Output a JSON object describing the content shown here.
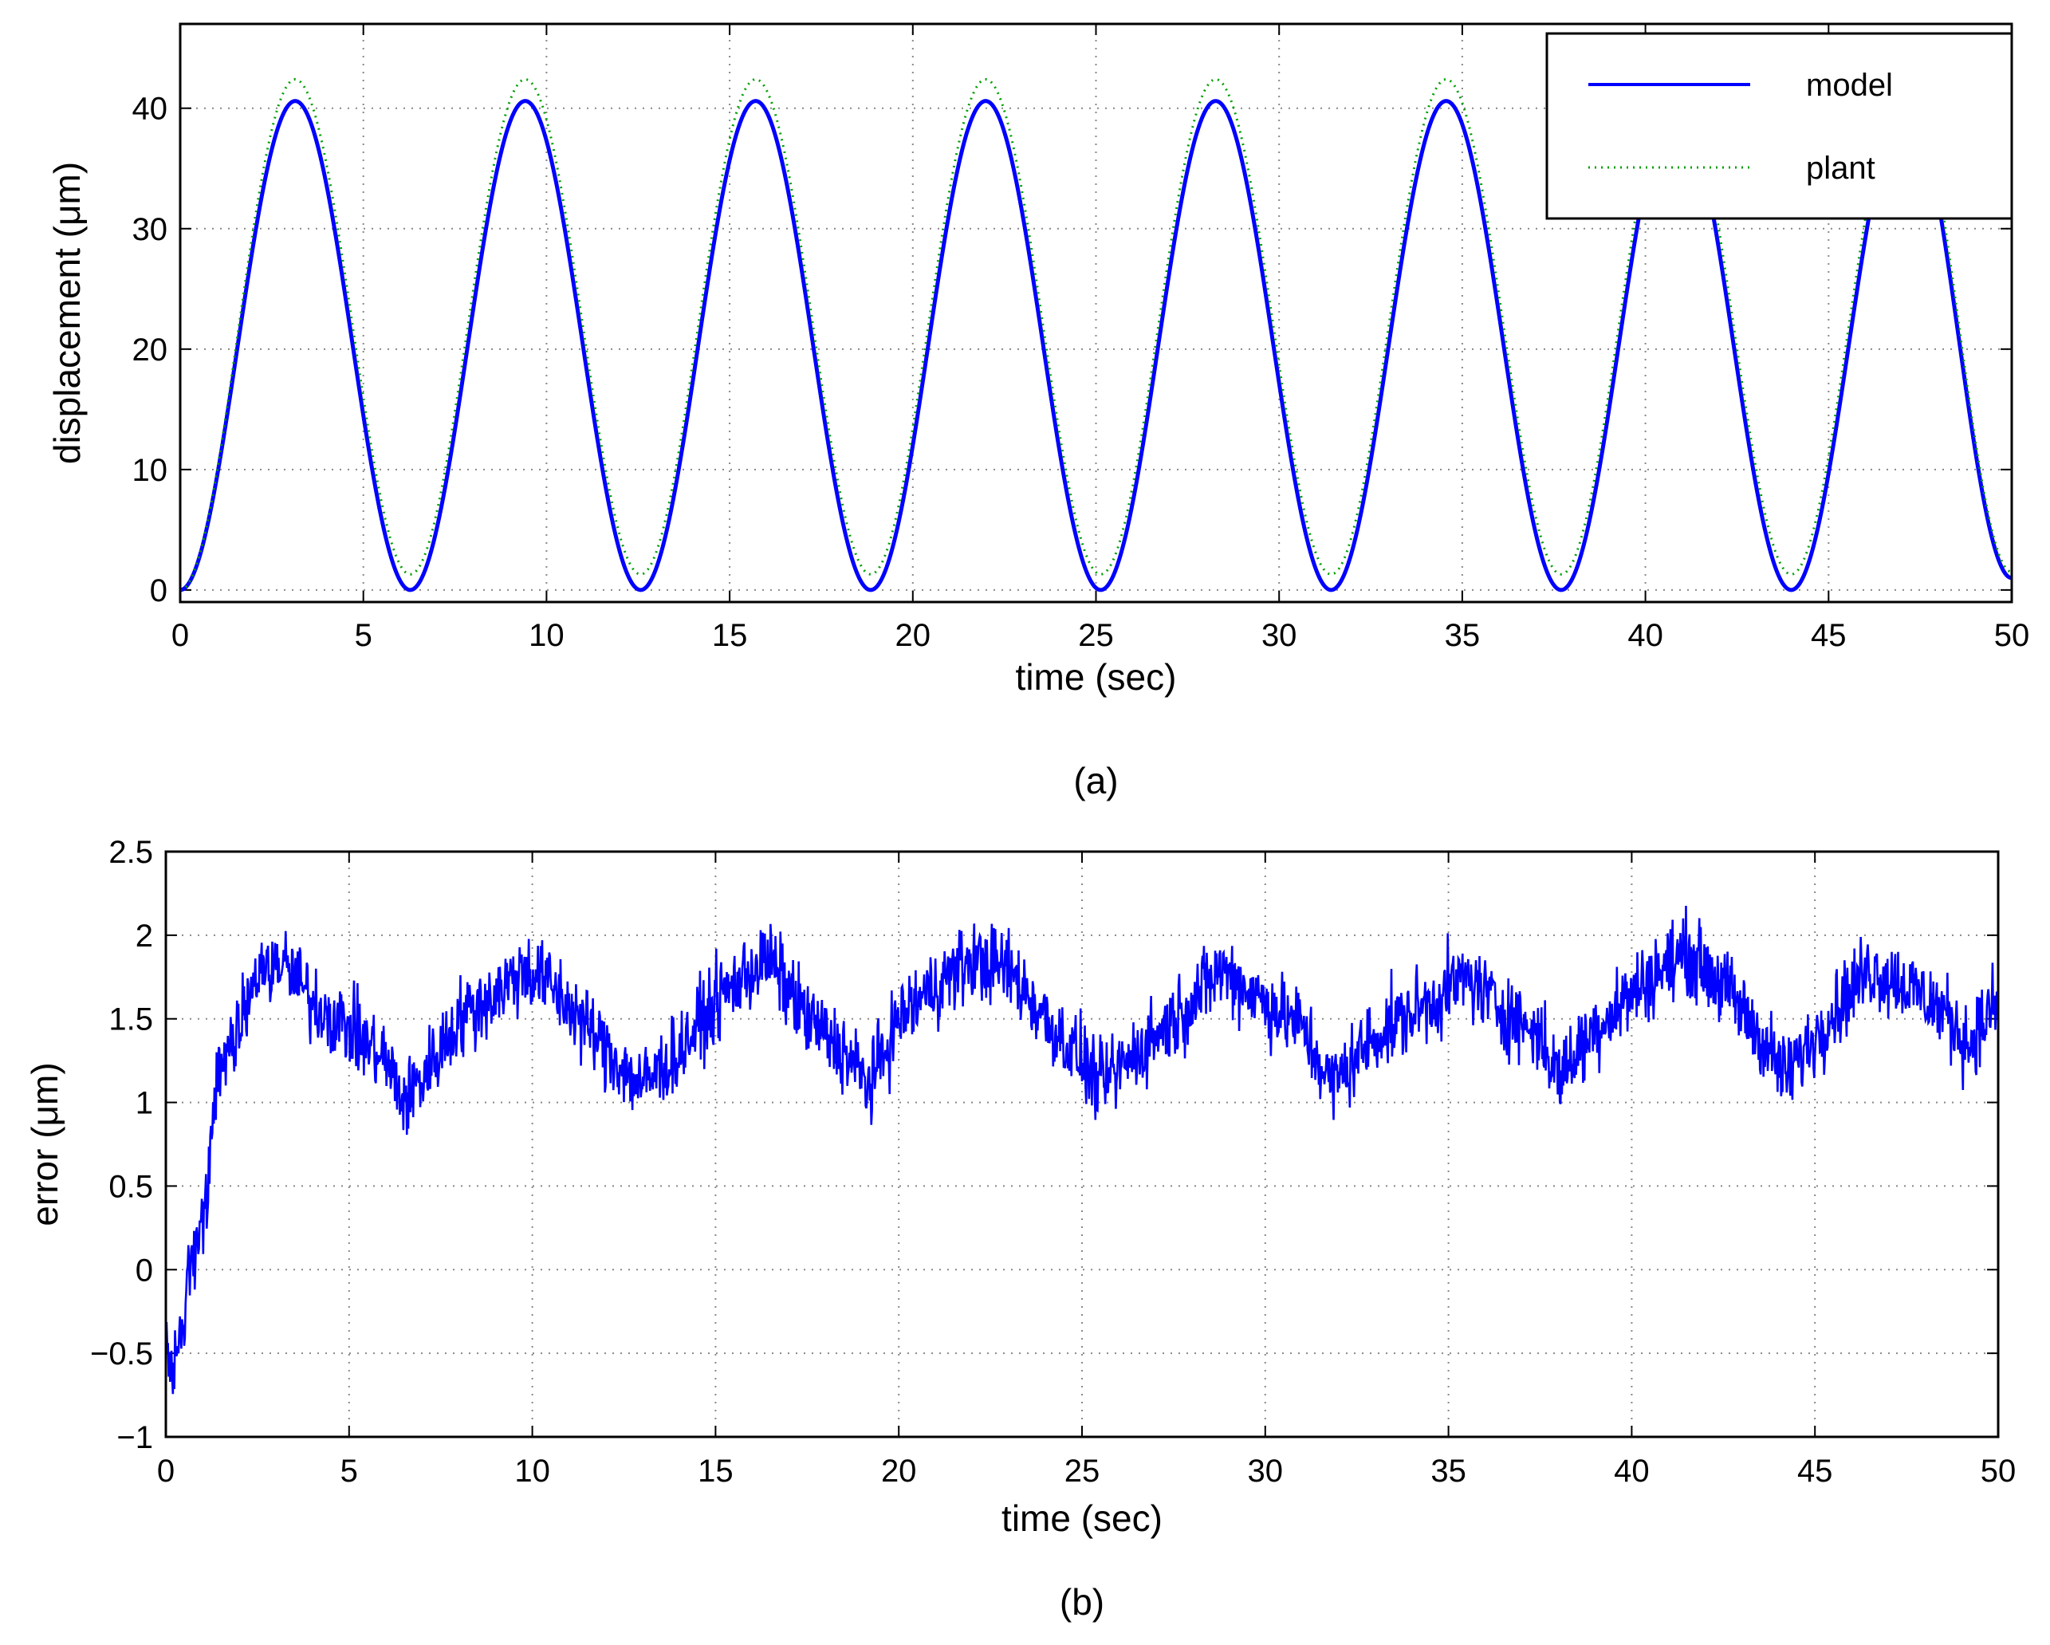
{
  "chart_data": [
    {
      "type": "line",
      "caption": "(a)",
      "xlabel": "time (sec)",
      "ylabel": "displacement (μm)",
      "xlim": [
        0,
        50
      ],
      "ylim": [
        -1,
        47
      ],
      "xticks": [
        0,
        5,
        10,
        15,
        20,
        25,
        30,
        35,
        40,
        45,
        50
      ],
      "xtick_labels": [
        "0",
        "5",
        "10",
        "15",
        "20",
        "25",
        "30",
        "35",
        "40",
        "45",
        "50"
      ],
      "yticks": [
        0,
        10,
        20,
        30,
        40
      ],
      "ytick_labels": [
        "0",
        "10",
        "20",
        "30",
        "40"
      ],
      "grid": true,
      "legend": "top-right",
      "series": [
        {
          "name": "model",
          "color": "#0000ff",
          "style": "solid",
          "description_points": {
            "x": [
              0,
              3.14,
              6.28,
              9.42,
              12.57,
              15.71,
              18.85,
              21.99,
              25.13,
              28.27,
              31.42,
              34.56,
              37.7,
              40.84,
              43.98,
              47.12,
              50.0
            ],
            "y": [
              0,
              40.6,
              0,
              40.6,
              0,
              40.6,
              0,
              40.6,
              0,
              40.6,
              0,
              40.6,
              0,
              40.6,
              0,
              40.6,
              1.0
            ]
          }
        },
        {
          "name": "plant",
          "color": "#00a000",
          "style": "dotted",
          "description_points": {
            "x": [
              0,
              3.14,
              6.28,
              9.42,
              12.57,
              15.71,
              18.85,
              21.99,
              25.13,
              28.27,
              31.42,
              34.56,
              37.7,
              40.84,
              43.98,
              47.12,
              50.0
            ],
            "y": [
              0,
              42.4,
              1.3,
              42.4,
              1.3,
              42.4,
              1.3,
              42.4,
              1.3,
              42.4,
              1.3,
              42.4,
              1.3,
              42.4,
              1.3,
              42.4,
              1.5
            ]
          }
        }
      ]
    },
    {
      "type": "line",
      "caption": "(b)",
      "xlabel": "time (sec)",
      "ylabel": "error (μm)",
      "xlim": [
        0,
        50
      ],
      "ylim": [
        -1,
        2.5
      ],
      "xticks": [
        0,
        5,
        10,
        15,
        20,
        25,
        30,
        35,
        40,
        45,
        50
      ],
      "xtick_labels": [
        "0",
        "5",
        "10",
        "15",
        "20",
        "25",
        "30",
        "35",
        "40",
        "45",
        "50"
      ],
      "yticks": [
        -1,
        -0.5,
        0,
        0.5,
        1,
        1.5,
        2,
        2.5
      ],
      "ytick_labels": [
        "−1",
        "−0.5",
        "0",
        "0.5",
        "1",
        "1.5",
        "2",
        "2.5"
      ],
      "grid": true,
      "series": [
        {
          "color": "#0000ff",
          "style": "solid",
          "noise_amplitude": 0.22,
          "envelope": {
            "x": [
              0,
              0.3,
              0.6,
              1.0,
              1.5,
              2.0,
              2.5,
              3.0,
              3.5,
              4.0,
              5.0,
              6.0,
              6.5,
              7.0,
              8.0,
              9.0,
              9.8,
              10.5,
              11.5,
              12.5,
              13.0,
              14.0,
              15.0,
              16.0,
              16.5,
              17.5,
              18.5,
              19.2,
              20.0,
              21.0,
              22.0,
              23.0,
              24.0,
              25.0,
              25.5,
              26.5,
              28.0,
              28.8,
              30.0,
              31.0,
              31.8,
              33.0,
              34.5,
              35.5,
              36.5,
              37.5,
              38.0,
              39.0,
              40.5,
              41.5,
              42.5,
              43.5,
              44.2,
              45.5,
              46.5,
              47.5,
              48.5,
              49.2,
              50.0
            ],
            "y": [
              -0.5,
              -0.6,
              -0.1,
              0.3,
              1.2,
              1.5,
              1.75,
              1.85,
              1.75,
              1.6,
              1.45,
              1.25,
              1.0,
              1.15,
              1.5,
              1.65,
              1.8,
              1.7,
              1.45,
              1.2,
              1.1,
              1.3,
              1.6,
              1.8,
              1.85,
              1.5,
              1.3,
              1.1,
              1.5,
              1.7,
              1.85,
              1.8,
              1.5,
              1.25,
              1.1,
              1.3,
              1.6,
              1.8,
              1.6,
              1.45,
              1.1,
              1.4,
              1.6,
              1.75,
              1.55,
              1.4,
              1.15,
              1.45,
              1.75,
              1.9,
              1.7,
              1.4,
              1.15,
              1.55,
              1.8,
              1.7,
              1.55,
              1.35,
              1.6
            ]
          }
        }
      ]
    }
  ]
}
